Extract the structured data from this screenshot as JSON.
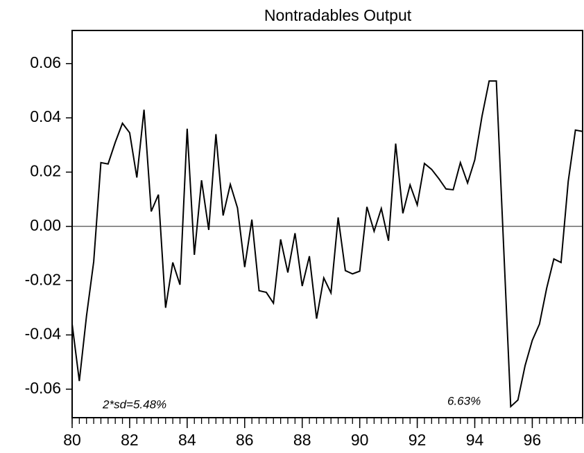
{
  "chart_data": {
    "type": "line",
    "title": "Nontradables Output",
    "annotations": [
      "2*sd=5.48%",
      "6.63%"
    ],
    "x": [
      80,
      80.25,
      80.5,
      80.75,
      81,
      81.25,
      81.5,
      81.75,
      82,
      82.25,
      82.5,
      82.75,
      83,
      83.25,
      83.5,
      83.75,
      84,
      84.25,
      84.5,
      84.75,
      85,
      85.25,
      85.5,
      85.75,
      86,
      86.25,
      86.5,
      86.75,
      87,
      87.25,
      87.5,
      87.75,
      88,
      88.25,
      88.5,
      88.75,
      89,
      89.25,
      89.5,
      89.75,
      90,
      90.25,
      90.5,
      90.75,
      91,
      91.25,
      91.5,
      91.75,
      92,
      92.25,
      92.5,
      92.75,
      93,
      93.25,
      93.5,
      93.75,
      94,
      94.25,
      94.5,
      94.75,
      95,
      95.25,
      95.5,
      95.75,
      96,
      96.25,
      96.5,
      96.75,
      97,
      97.25,
      97.5,
      97.75
    ],
    "series": [
      {
        "name": "Nontradables Output",
        "color": "#000000",
        "values": [
          -0.036,
          -0.057,
          -0.033,
          -0.013,
          0.0235,
          0.023,
          0.031,
          0.038,
          0.0345,
          0.018,
          0.043,
          0.0055,
          0.0117,
          -0.03,
          -0.0133,
          -0.0215,
          0.036,
          -0.0105,
          0.017,
          -0.0013,
          0.034,
          0.004,
          0.0155,
          0.0068,
          -0.015,
          0.0025,
          -0.0237,
          -0.0243,
          -0.0283,
          -0.0048,
          -0.017,
          -0.0025,
          -0.022,
          -0.011,
          -0.034,
          -0.019,
          -0.0245,
          0.0033,
          -0.0163,
          -0.0175,
          -0.0165,
          0.0072,
          -0.0018,
          0.0066,
          -0.0053,
          0.0305,
          0.0048,
          0.0153,
          0.0079,
          0.0232,
          0.021,
          0.0176,
          0.0138,
          0.0135,
          0.0235,
          0.016,
          0.0245,
          0.0405,
          0.0536,
          0.0536,
          -0.0065,
          -0.0664,
          -0.064,
          -0.0513,
          -0.042,
          -0.036,
          -0.0228,
          -0.012,
          -0.0133,
          0.0166,
          0.0355,
          0.035
        ]
      }
    ],
    "xlim": [
      80,
      97.75
    ],
    "xticks": [
      80,
      82,
      84,
      86,
      88,
      90,
      92,
      94,
      96
    ],
    "ylim": [
      -0.0705,
      0.0722
    ],
    "yticks": [
      -0.06,
      -0.04,
      -0.02,
      {
        "value": 0,
        "label": "0.00"
      },
      0.02,
      0.04,
      0.06
    ],
    "reference_line": 0
  }
}
